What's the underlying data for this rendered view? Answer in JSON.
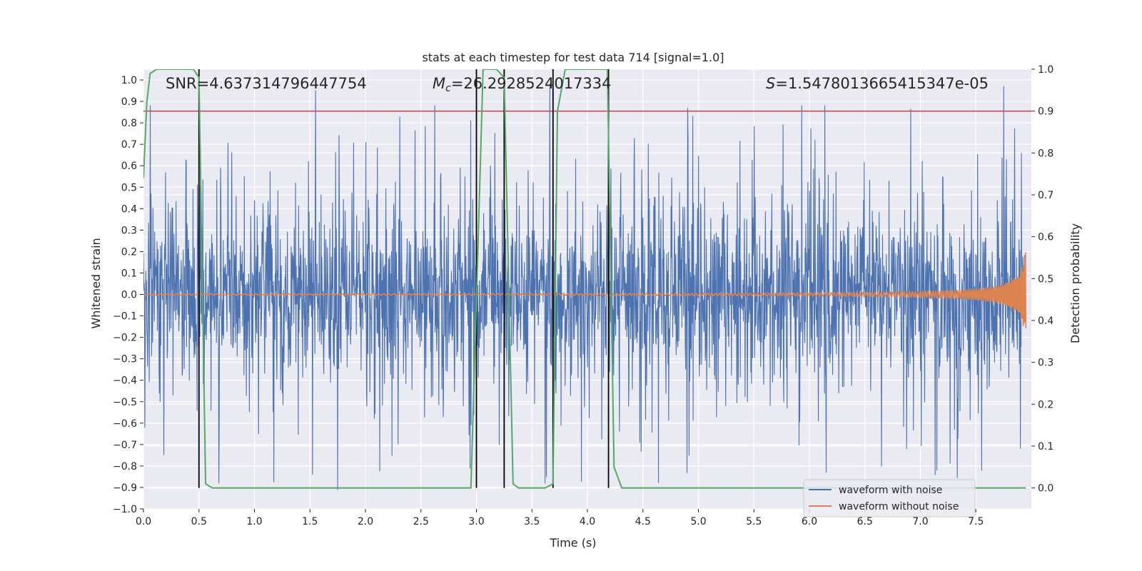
{
  "chart_data": {
    "type": "line",
    "title": "stats at each timestep for test data 714 [signal=1.0]",
    "xlabel": "Time (s)",
    "ylabel_left": "Whitened strain",
    "ylabel_right": "Detection probability",
    "xlim": [
      0.0,
      8.0
    ],
    "ylim_left": [
      -1.0,
      1.05
    ],
    "ylim_right": [
      -0.05,
      1.0
    ],
    "x_ticks": [
      "0.0",
      "0.5",
      "1.0",
      "1.5",
      "2.0",
      "2.5",
      "3.0",
      "3.5",
      "4.0",
      "4.5",
      "5.0",
      "5.5",
      "6.0",
      "6.5",
      "7.0",
      "7.5"
    ],
    "y_ticks_left": [
      "−1.0",
      "−0.9",
      "−0.8",
      "−0.7",
      "−0.6",
      "−0.5",
      "−0.4",
      "−0.3",
      "−0.2",
      "−0.1",
      "0.0",
      "0.1",
      "0.2",
      "0.3",
      "0.4",
      "0.5",
      "0.6",
      "0.7",
      "0.8",
      "0.9",
      "1.0"
    ],
    "y_ticks_right": [
      "0.0",
      "0.1",
      "0.2",
      "0.3",
      "0.4",
      "0.5",
      "0.6",
      "0.7",
      "0.8",
      "0.9",
      "1.0"
    ],
    "annotations": {
      "snr": "SNR=4.637314796447754",
      "mc_symbol": "M",
      "mc_sub": "c",
      "mc_value": "=26.2928524017334",
      "s_symbol": "S",
      "s_value": "=1.5478013665415347e-05"
    },
    "threshold_right": 0.9,
    "vertical_markers_x": [
      0.5,
      3.0,
      3.25,
      3.69,
      4.19
    ],
    "series": [
      {
        "name": "waveform with noise",
        "axis": "left",
        "color": "#4c72b0",
        "kind": "noise",
        "amplitude_core": 0.35,
        "max_peak": 0.97,
        "min_peak": -0.91
      },
      {
        "name": "waveform without noise",
        "axis": "left",
        "color": "#dd8452",
        "kind": "chirp",
        "peak_amplitude": 0.21,
        "end_x": 7.95
      },
      {
        "axis": "right",
        "color": "#55a868",
        "x": [
          0.0,
          0.03,
          0.06,
          0.12,
          0.45,
          0.5,
          0.56,
          0.62,
          2.95,
          3.0,
          3.06,
          3.18,
          3.25,
          3.33,
          3.38,
          3.62,
          3.69,
          3.73,
          3.8,
          4.18,
          4.24,
          4.31,
          7.95
        ],
        "y": [
          0.74,
          0.92,
          0.99,
          1.0,
          1.0,
          0.98,
          0.01,
          0.0,
          0.0,
          0.45,
          1.0,
          1.0,
          0.98,
          0.01,
          0.0,
          0.0,
          0.01,
          0.9,
          1.0,
          1.0,
          0.05,
          0.0,
          0.0
        ]
      }
    ],
    "legend": {
      "placement": "lower-right",
      "entries": [
        "waveform with noise",
        "waveform without noise"
      ]
    },
    "colors": {
      "background": "#eaeaf2",
      "grid": "#ffffff",
      "threshold": "#c44e52",
      "markers": "#000000"
    },
    "grid": true
  }
}
